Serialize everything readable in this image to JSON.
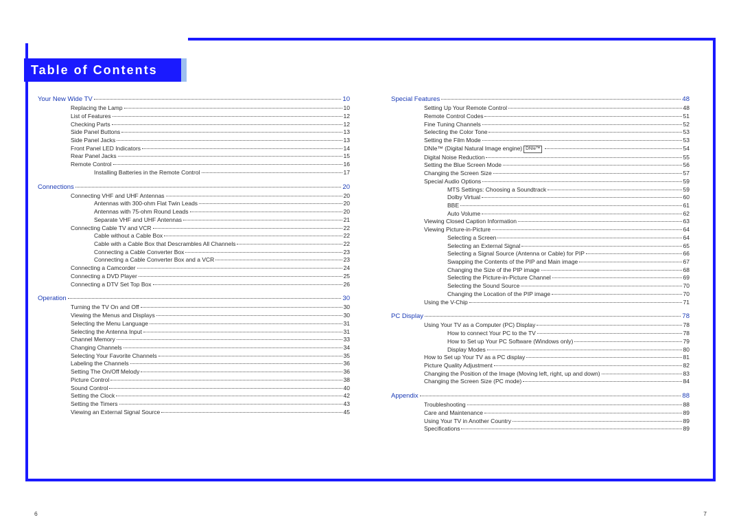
{
  "title": "Table of Contents",
  "page_left": "6",
  "page_right": "7",
  "colors": {
    "accent": "#1a1aff",
    "section_text": "#1a3ab5",
    "title_side": "#9dbff0"
  },
  "left_items": [
    {
      "t": "section",
      "label": "Your New Wide TV",
      "pg": "10"
    },
    {
      "t": "i1",
      "label": "Replacing the Lamp",
      "pg": "10"
    },
    {
      "t": "i1",
      "label": "List of Features",
      "pg": "12"
    },
    {
      "t": "i1",
      "label": "Checking Parts",
      "pg": "12"
    },
    {
      "t": "i1",
      "label": "Side Panel Buttons",
      "pg": "13"
    },
    {
      "t": "i1",
      "label": "Side Panel Jacks",
      "pg": "13"
    },
    {
      "t": "i1",
      "label": "Front Panel LED Indicators",
      "pg": "14"
    },
    {
      "t": "i1",
      "label": "Rear Panel Jacks",
      "pg": "15"
    },
    {
      "t": "i1",
      "label": "Remote Control",
      "pg": "16"
    },
    {
      "t": "i2",
      "label": "Installing Batteries in the Remote Control",
      "pg": "17"
    },
    {
      "t": "section",
      "label": "Connections",
      "pg": "20"
    },
    {
      "t": "i1",
      "label": "Connecting VHF and UHF Antennas",
      "pg": "20"
    },
    {
      "t": "i2",
      "label": "Antennas with 300-ohm Flat Twin Leads",
      "pg": "20"
    },
    {
      "t": "i2",
      "label": "Antennas with 75-ohm Round Leads",
      "pg": "20"
    },
    {
      "t": "i2",
      "label": "Separate VHF and UHF Antennas",
      "pg": "21"
    },
    {
      "t": "i1",
      "label": "Connecting Cable TV and VCR",
      "pg": "22"
    },
    {
      "t": "i2",
      "label": "Cable without a Cable Box",
      "pg": "22"
    },
    {
      "t": "i2",
      "label": "Cable with a Cable Box that Descrambles All Channels",
      "pg": "22"
    },
    {
      "t": "i2",
      "label": "Connecting a Cable Converter Box",
      "pg": "23"
    },
    {
      "t": "i2",
      "label": "Connecting a Cable Converter Box and a VCR",
      "pg": "23"
    },
    {
      "t": "i1",
      "label": "Connecting a Camcorder",
      "pg": "24"
    },
    {
      "t": "i1",
      "label": "Connecting a DVD Player",
      "pg": "25"
    },
    {
      "t": "i1",
      "label": "Connecting a DTV Set Top Box",
      "pg": "26"
    },
    {
      "t": "section",
      "label": "Operation",
      "pg": "30"
    },
    {
      "t": "i1",
      "label": "Turning the TV On and Off",
      "pg": "30"
    },
    {
      "t": "i1",
      "label": "Viewing the Menus and Displays",
      "pg": "30"
    },
    {
      "t": "i1",
      "label": "Selecting the Menu Language",
      "pg": "31"
    },
    {
      "t": "i1",
      "label": "Selecting the Antenna Input",
      "pg": "31"
    },
    {
      "t": "i1",
      "label": "Channel Memory",
      "pg": "33"
    },
    {
      "t": "i1",
      "label": "Changing Channels",
      "pg": "34"
    },
    {
      "t": "i1",
      "label": "Selecting Your Favorite Channels",
      "pg": "35"
    },
    {
      "t": "i1",
      "label": "Labeling the Channels",
      "pg": "36"
    },
    {
      "t": "i1",
      "label": "Setting The On/Off Melody",
      "pg": "36"
    },
    {
      "t": "i1",
      "label": "Picture Control",
      "pg": "38"
    },
    {
      "t": "i1",
      "label": "Sound Control",
      "pg": "40"
    },
    {
      "t": "i1",
      "label": "Setting the Clock",
      "pg": "42"
    },
    {
      "t": "i1",
      "label": "Setting the Timers",
      "pg": "43"
    },
    {
      "t": "i1",
      "label": "Viewing an External Signal Source",
      "pg": "45"
    }
  ],
  "right_items": [
    {
      "t": "section",
      "label": "Special Features",
      "pg": "48"
    },
    {
      "t": "i1",
      "label": "Setting Up Your Remote Control",
      "pg": "48"
    },
    {
      "t": "i1",
      "label": "Remote Control Codes",
      "pg": "51"
    },
    {
      "t": "i1",
      "label": "Fine Tuning Channels",
      "pg": "52"
    },
    {
      "t": "i1",
      "label": "Selecting the Color Tone",
      "pg": "53"
    },
    {
      "t": "i1",
      "label": "Setting the Film Mode",
      "pg": "53"
    },
    {
      "t": "i1",
      "label": "DNIe™ (Digital Natural Image engine)",
      "pg": "54",
      "badge": "DNIe™"
    },
    {
      "t": "i1",
      "label": "Digital Noise Reduction",
      "pg": "55"
    },
    {
      "t": "i1",
      "label": "Setting the Blue Screen Mode",
      "pg": "56"
    },
    {
      "t": "i1",
      "label": "Changing the Screen Size",
      "pg": "57"
    },
    {
      "t": "i1",
      "label": "Special Audio Options",
      "pg": "59"
    },
    {
      "t": "i2",
      "label": "MTS Settings: Choosing a Soundtrack",
      "pg": "59"
    },
    {
      "t": "i2",
      "label": "Dolby Virtual",
      "pg": "60"
    },
    {
      "t": "i2",
      "label": "BBE",
      "pg": "61"
    },
    {
      "t": "i2",
      "label": "Auto Volume",
      "pg": "62"
    },
    {
      "t": "i1",
      "label": "Viewing Closed Caption Information",
      "pg": "63"
    },
    {
      "t": "i1",
      "label": "Viewing Picture-in-Picture",
      "pg": "64"
    },
    {
      "t": "i2",
      "label": "Selecting a Screen",
      "pg": "64"
    },
    {
      "t": "i2",
      "label": "Selecting an External Signal",
      "pg": "65"
    },
    {
      "t": "i2",
      "label": "Selecting a Signal Source (Antenna or Cable) for PIP",
      "pg": "66"
    },
    {
      "t": "i2",
      "label": "Swapping the Contents of the PIP and Main image",
      "pg": "67"
    },
    {
      "t": "i2",
      "label": "Changing the Size of the PIP image",
      "pg": "68"
    },
    {
      "t": "i2",
      "label": "Selecting the Picture-in-Picture Channel",
      "pg": "69"
    },
    {
      "t": "i2",
      "label": "Selecting the Sound Source",
      "pg": "70"
    },
    {
      "t": "i2",
      "label": "Changing the Location of the PIP image",
      "pg": "70"
    },
    {
      "t": "i1",
      "label": "Using the V-Chip",
      "pg": "71"
    },
    {
      "t": "section",
      "label": "PC Display",
      "pg": "78"
    },
    {
      "t": "i1",
      "label": "Using Your TV as a Computer (PC) Display",
      "pg": "78"
    },
    {
      "t": "i2",
      "label": "How to connect Your PC to the TV",
      "pg": "78"
    },
    {
      "t": "i2",
      "label": "How to Set up Your PC Software (Windows only)",
      "pg": "79"
    },
    {
      "t": "i2",
      "label": "Display Modes",
      "pg": "80"
    },
    {
      "t": "i1",
      "label": "How to Set up Your TV as a PC display",
      "pg": "81"
    },
    {
      "t": "i1",
      "label": "Picture Quality Adjustment",
      "pg": "82"
    },
    {
      "t": "i1",
      "label": "Changing the Position of the Image (Moving left, right, up and down)",
      "pg": "83"
    },
    {
      "t": "i1",
      "label": "Changing the Screen Size (PC mode)",
      "pg": "84"
    },
    {
      "t": "section",
      "label": "Appendix",
      "pg": "88"
    },
    {
      "t": "i1",
      "label": "Troubleshooting",
      "pg": "88"
    },
    {
      "t": "i1",
      "label": "Care and Maintenance",
      "pg": "89"
    },
    {
      "t": "i1",
      "label": "Using Your TV in Another Country",
      "pg": "89"
    },
    {
      "t": "i1",
      "label": "Specifications",
      "pg": "89"
    }
  ]
}
